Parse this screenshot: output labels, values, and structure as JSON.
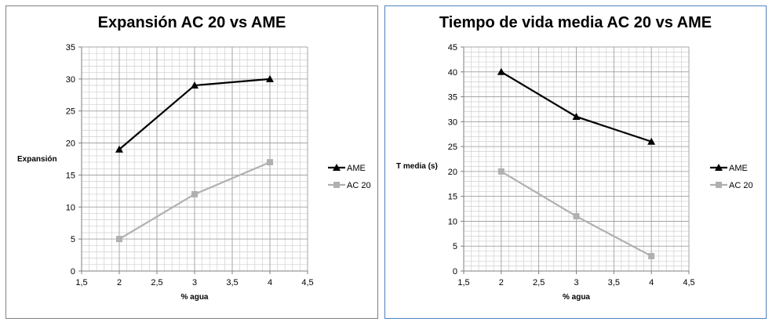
{
  "chart_data": [
    {
      "type": "line",
      "title": "Expansión AC 20 vs AME",
      "xlabel": "% agua",
      "ylabel": "Expansión",
      "xlim": [
        1.5,
        4.5
      ],
      "ylim": [
        0,
        35
      ],
      "xticks": [
        1.5,
        2,
        2.5,
        3,
        3.5,
        4,
        4.5
      ],
      "xtick_labels": [
        "1,5",
        "2",
        "2,5",
        "3",
        "3,5",
        "4",
        "4,5"
      ],
      "yticks": [
        0,
        5,
        10,
        15,
        20,
        25,
        30,
        35
      ],
      "ytick_labels": [
        "0",
        "5",
        "10",
        "15",
        "20",
        "25",
        "30",
        "35"
      ],
      "grid": true,
      "legend_position": "right",
      "series": [
        {
          "name": "AME",
          "color": "#000000",
          "marker": "triangle",
          "x": [
            2,
            3,
            4
          ],
          "y": [
            19,
            29,
            30
          ]
        },
        {
          "name": "AC 20",
          "color": "#b0b0b0",
          "marker": "square",
          "x": [
            2,
            3,
            4
          ],
          "y": [
            5,
            12,
            17
          ]
        }
      ]
    },
    {
      "type": "line",
      "title": "Tiempo de vida media AC 20 vs AME",
      "xlabel": "% agua",
      "ylabel": "T media (s)",
      "xlim": [
        1.5,
        4.5
      ],
      "ylim": [
        0,
        45
      ],
      "xticks": [
        1.5,
        2,
        2.5,
        3,
        3.5,
        4,
        4.5
      ],
      "xtick_labels": [
        "1,5",
        "2",
        "2,5",
        "3",
        "3,5",
        "4",
        "4,5"
      ],
      "yticks": [
        0,
        5,
        10,
        15,
        20,
        25,
        30,
        35,
        40,
        45
      ],
      "ytick_labels": [
        "0",
        "5",
        "10",
        "15",
        "20",
        "25",
        "30",
        "35",
        "40",
        "45"
      ],
      "grid": true,
      "legend_position": "right",
      "series": [
        {
          "name": "AME",
          "color": "#000000",
          "marker": "triangle",
          "x": [
            2,
            3,
            4
          ],
          "y": [
            40,
            31,
            26
          ]
        },
        {
          "name": "AC 20",
          "color": "#b0b0b0",
          "marker": "square",
          "x": [
            2,
            3,
            4
          ],
          "y": [
            20,
            11,
            3
          ]
        }
      ]
    }
  ]
}
